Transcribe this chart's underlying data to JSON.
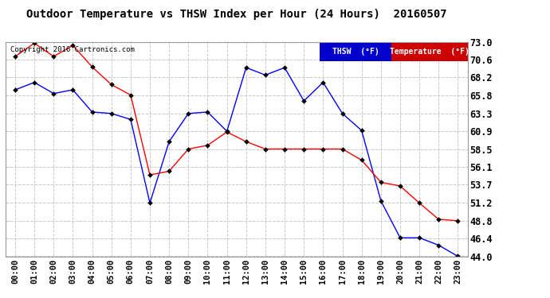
{
  "title": "Outdoor Temperature vs THSW Index per Hour (24 Hours)  20160507",
  "copyright": "Copyright 2016 Cartronics.com",
  "hours": [
    "00:00",
    "01:00",
    "02:00",
    "03:00",
    "04:00",
    "05:00",
    "06:00",
    "07:00",
    "08:00",
    "09:00",
    "10:00",
    "11:00",
    "12:00",
    "13:00",
    "14:00",
    "15:00",
    "16:00",
    "17:00",
    "18:00",
    "19:00",
    "20:00",
    "21:00",
    "22:00",
    "23:00"
  ],
  "thsw": [
    66.5,
    67.5,
    66.0,
    66.5,
    63.5,
    63.3,
    62.5,
    51.2,
    59.5,
    63.3,
    63.5,
    60.9,
    69.5,
    68.5,
    69.5,
    65.0,
    67.5,
    63.3,
    61.0,
    51.5,
    46.5,
    46.5,
    45.5,
    44.0
  ],
  "temperature": [
    71.0,
    72.8,
    71.0,
    72.5,
    69.6,
    67.2,
    65.8,
    55.0,
    55.5,
    58.5,
    59.0,
    60.8,
    59.5,
    58.5,
    58.5,
    58.5,
    58.5,
    58.5,
    57.0,
    54.0,
    53.5,
    51.2,
    49.0,
    48.8
  ],
  "thsw_color": "#0000ff",
  "temp_color": "#ff0000",
  "bg_color": "#ffffff",
  "grid_color": "#c8c8c8",
  "ylim_min": 44.0,
  "ylim_max": 73.0,
  "yticks": [
    44.0,
    46.4,
    48.8,
    51.2,
    53.7,
    56.1,
    58.5,
    60.9,
    63.3,
    65.8,
    68.2,
    70.6,
    73.0
  ],
  "legend_thsw_bg": "#0000cc",
  "legend_temp_bg": "#cc0000",
  "legend_thsw_text": "THSW  (°F)",
  "legend_temp_text": "Temperature  (°F)"
}
